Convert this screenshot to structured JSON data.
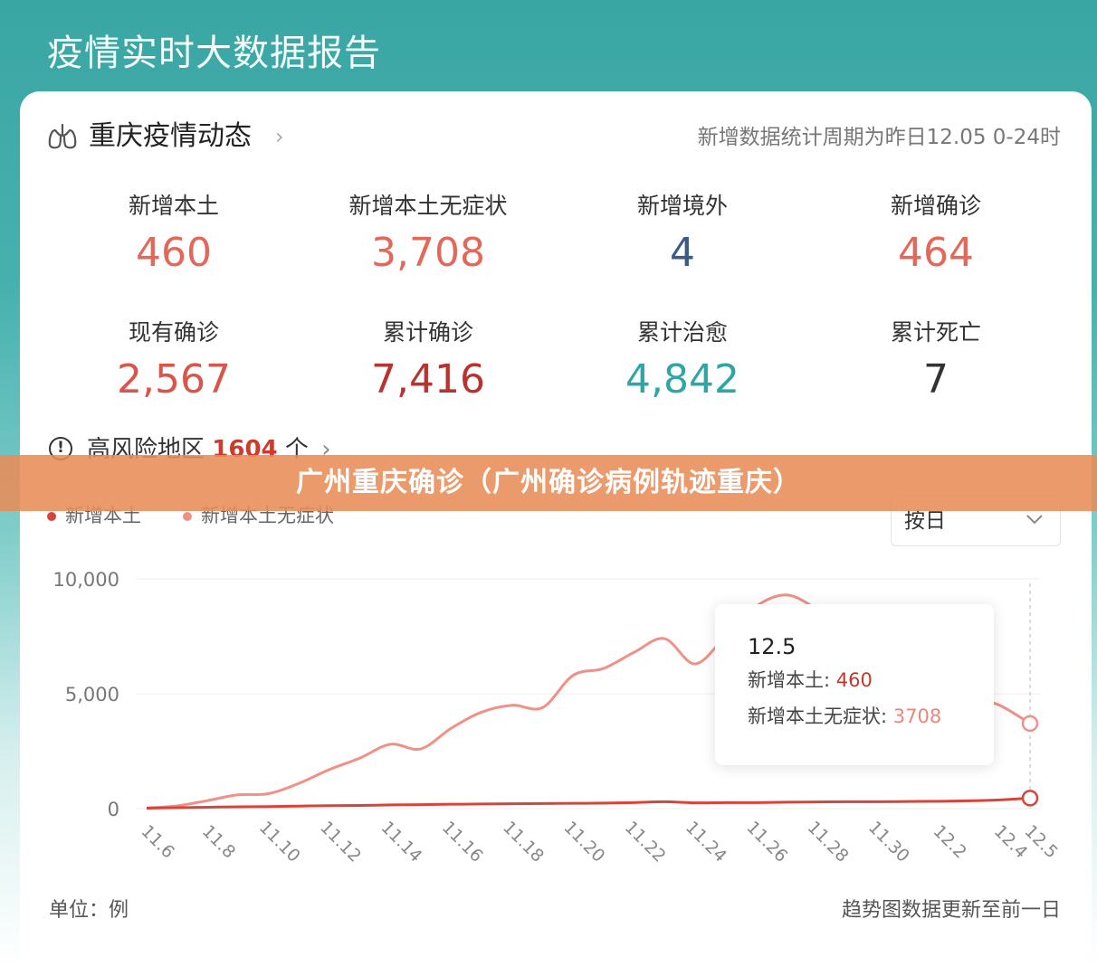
{
  "page": {
    "title": "疫情实时大数据报告"
  },
  "header": {
    "section_title": "重庆疫情动态",
    "chevron": "›",
    "stats_period": "新增数据统计周期为昨日12.05 0-24时"
  },
  "stats": [
    {
      "label": "新增本土",
      "value": "460",
      "color": "#e2685a"
    },
    {
      "label": "新增本土无症状",
      "value": "3,708",
      "color": "#e2685a"
    },
    {
      "label": "新增境外",
      "value": "4",
      "color": "#3b5b86"
    },
    {
      "label": "新增确诊",
      "value": "464",
      "color": "#e2685a"
    },
    {
      "label": "现有确诊",
      "value": "2,567",
      "color": "#d9544a"
    },
    {
      "label": "累计确诊",
      "value": "7,416",
      "color": "#b8322e"
    },
    {
      "label": "累计治愈",
      "value": "4,842",
      "color": "#2fa6a6"
    },
    {
      "label": "累计死亡",
      "value": "7",
      "color": "#333333"
    }
  ],
  "risk": {
    "icon": "!",
    "label": "高风险地区",
    "count": "1604",
    "unit": "个",
    "chevron": "›"
  },
  "banner": {
    "text": "广州重庆确诊（广州确诊病例轨迹重庆）"
  },
  "period_select": {
    "value": "按日"
  },
  "tooltip": {
    "date": "12.5",
    "row1_label": "新增本土:",
    "row1_value": "460",
    "row2_label": "新增本土无症状:",
    "row2_value": "3708"
  },
  "footer": {
    "unit": "单位：例",
    "note": "趋势图数据更新至前一日"
  },
  "chart_data": {
    "type": "line",
    "x": [
      "11.6",
      "11.7",
      "11.8",
      "11.9",
      "11.10",
      "11.11",
      "11.12",
      "11.13",
      "11.14",
      "11.15",
      "11.16",
      "11.17",
      "11.18",
      "11.19",
      "11.20",
      "11.21",
      "11.22",
      "11.23",
      "11.24",
      "11.25",
      "11.26",
      "11.27",
      "11.28",
      "11.29",
      "11.30",
      "12.1",
      "12.2",
      "12.3",
      "12.4",
      "12.5"
    ],
    "x_tick_labels": [
      "11.6",
      "11.8",
      "11.10",
      "11.12",
      "11.14",
      "11.16",
      "11.18",
      "11.20",
      "11.22",
      "11.24",
      "11.26",
      "11.28",
      "11.30",
      "12.2",
      "12.4",
      "12.5"
    ],
    "series": [
      {
        "name": "新增本土",
        "color": "#d9443a",
        "values": [
          20,
          40,
          60,
          80,
          90,
          110,
          130,
          140,
          160,
          170,
          190,
          200,
          210,
          220,
          230,
          240,
          260,
          300,
          250,
          260,
          260,
          280,
          290,
          300,
          300,
          310,
          320,
          340,
          380,
          460
        ]
      },
      {
        "name": "新增本土无症状",
        "color": "#ef9186",
        "values": [
          30,
          120,
          350,
          600,
          650,
          1100,
          1700,
          2200,
          2800,
          2600,
          3500,
          4200,
          4500,
          4400,
          5800,
          6100,
          6800,
          7400,
          6300,
          7500,
          8800,
          9300,
          8700,
          7900,
          7200,
          6300,
          5500,
          4900,
          4500,
          3708
        ]
      }
    ],
    "y_ticks": [
      "0",
      "5,000",
      "10,000"
    ],
    "ylim": [
      0,
      10000
    ],
    "grid": true,
    "legend": "top-left",
    "xlabel": "",
    "ylabel": ""
  }
}
